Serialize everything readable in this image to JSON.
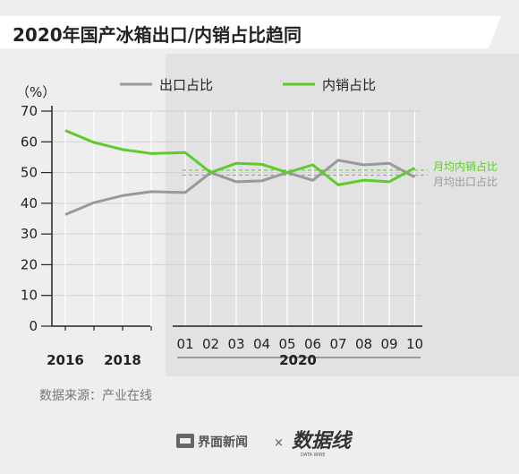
{
  "chart_data": {
    "type": "line",
    "title": "2020年国产冰箱出口/内销占比趋同",
    "ylabel": "（%）",
    "ylim": [
      0,
      70
    ],
    "yticks": [
      0,
      10,
      20,
      30,
      40,
      50,
      60,
      70
    ],
    "grid": true,
    "legend_position": "top",
    "annual": {
      "x": [
        2016,
        2017,
        2018,
        2019
      ],
      "tick_labels": [
        "2016",
        "2018"
      ],
      "tick_years": [
        2016,
        2018
      ]
    },
    "monthly": {
      "year_label": "2020",
      "x": [
        "01",
        "02",
        "03",
        "04",
        "05",
        "06",
        "07",
        "08",
        "09",
        "10"
      ]
    },
    "series": [
      {
        "name": "出口占比",
        "color": "#999999",
        "annual_values": [
          36.3,
          40.2,
          42.5,
          43.8
        ],
        "monthly_values": [
          43.5,
          50.0,
          47.0,
          47.3,
          50.0,
          47.5,
          54.0,
          52.5,
          53.0,
          48.5
        ]
      },
      {
        "name": "内销占比",
        "color": "#5dcc2a",
        "annual_values": [
          63.7,
          59.8,
          57.5,
          56.2
        ],
        "monthly_values": [
          56.5,
          50.0,
          53.0,
          52.7,
          50.0,
          52.5,
          46.0,
          47.5,
          47.0,
          51.5
        ]
      }
    ],
    "annotations": [
      {
        "text": "月均内销占比",
        "value": 50.8,
        "color": "#5dcc2a"
      },
      {
        "text": "月均出口占比",
        "value": 49.2,
        "color": "#999999"
      }
    ]
  },
  "source": "数据来源：产业在线",
  "footer": {
    "brand": "界面新闻",
    "separator": "×",
    "partner": "数据线",
    "partner_sub": "DATA WIRE"
  },
  "colors": {
    "title_bar": "#ffffff",
    "shade": "#e2e2e2",
    "axis": "#222222",
    "grid": "#cfcfcf"
  },
  "icons": {
    "brand_logo": "jiemian-logo-icon"
  }
}
